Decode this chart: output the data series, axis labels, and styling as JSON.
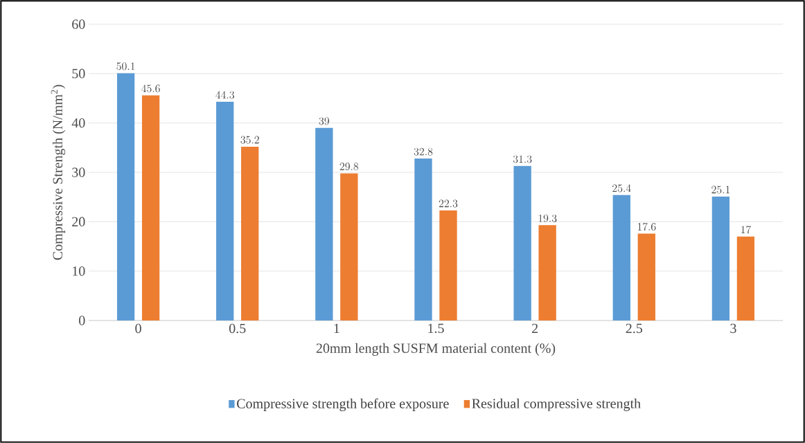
{
  "chart_data": {
    "type": "bar",
    "xlabel": "20mm length SUSFM material content (%)",
    "ylabel": "Compressive Strength (N/mm$^{2}$)",
    "categories": [
      "0",
      "0.5",
      "1",
      "1.5",
      "2",
      "2.5",
      "3"
    ],
    "series": [
      {
        "name": "Compressive strength before exposure",
        "color": "#5b9bd5",
        "values": [
          50.1,
          44.3,
          39,
          32.8,
          31.3,
          25.4,
          25.1
        ]
      },
      {
        "name": "Residual compressive strength",
        "color": "#ed7d31",
        "values": [
          45.6,
          35.2,
          29.8,
          22.3,
          19.3,
          17.6,
          17
        ]
      }
    ],
    "ylim": [
      0,
      60
    ],
    "yticks": [
      0,
      10,
      20,
      30,
      40,
      50,
      60
    ],
    "grid": "y",
    "legend": "bottom",
    "data_labels": true
  }
}
